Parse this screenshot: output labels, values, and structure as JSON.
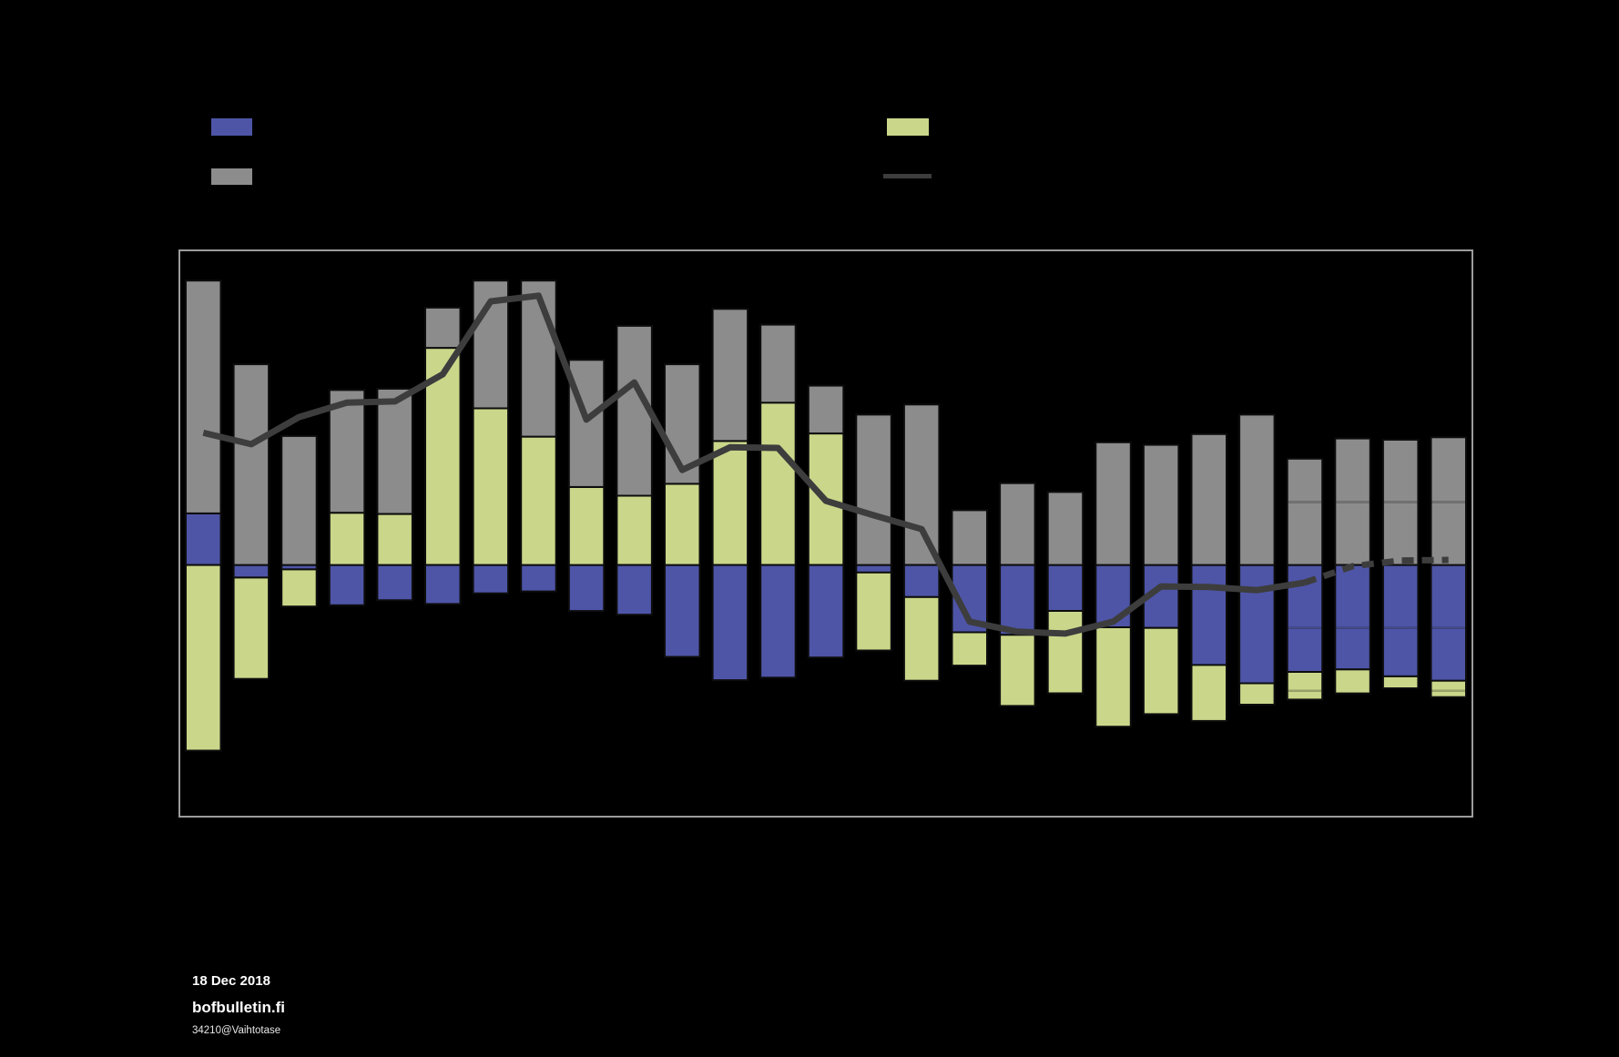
{
  "page": {
    "background": "#000000"
  },
  "legend": {
    "items": [
      {
        "id": "blue",
        "label": "",
        "color": "#4E55A7",
        "shape": "rect"
      },
      {
        "id": "yellow",
        "label": "",
        "color": "#CAD78A",
        "shape": "rect"
      },
      {
        "id": "gray",
        "label": "",
        "color": "#8C8C8C",
        "shape": "rect"
      },
      {
        "id": "line",
        "label": "",
        "color": "#3D3D3D",
        "shape": "line"
      }
    ]
  },
  "footer": {
    "date": "18 Dec 2018",
    "site": "bofbulletin.fi",
    "code": "34210@Vaihtotase"
  },
  "chart_data": {
    "type": "bar+line",
    "title": "",
    "xlabel": "",
    "ylabel": "",
    "x_tick_labels": [],
    "n_categories": 27,
    "ylim": [
      -4,
      5
    ],
    "gridline_step": 1,
    "legend_position": "top",
    "grid_visible_on_background": false,
    "forecast_from_index": 23,
    "forecast_gridlines": [
      1,
      -1,
      -2
    ],
    "stack_order": [
      "blue",
      "yellow",
      "gray"
    ],
    "series": [
      {
        "name": "blue",
        "kind": "bar",
        "color": "#4E55A7",
        "values": [
          0.82,
          -0.2,
          -0.07,
          -0.64,
          -0.56,
          -0.62,
          -0.45,
          -0.42,
          -0.73,
          -0.79,
          -1.46,
          -1.83,
          -1.79,
          -1.47,
          -0.12,
          -0.51,
          -1.07,
          -1.11,
          -0.73,
          -0.99,
          -1.0,
          -1.59,
          -1.88,
          -1.7,
          -1.66,
          -1.77,
          -1.84
        ]
      },
      {
        "name": "yellow",
        "kind": "bar",
        "color": "#CAD78A",
        "values": [
          -2.95,
          -1.61,
          -0.59,
          0.83,
          0.81,
          3.45,
          2.49,
          2.04,
          1.24,
          1.1,
          1.29,
          1.97,
          2.58,
          2.09,
          -1.24,
          -1.33,
          -0.53,
          -1.13,
          -1.31,
          -1.58,
          -1.37,
          -0.89,
          -0.34,
          -0.44,
          -0.38,
          -0.19,
          -0.26
        ]
      },
      {
        "name": "gray",
        "kind": "bar",
        "color": "#8C8C8C",
        "values": [
          3.7,
          3.19,
          2.05,
          1.95,
          1.99,
          0.64,
          2.03,
          2.48,
          2.02,
          2.7,
          1.9,
          2.1,
          1.24,
          0.76,
          2.39,
          2.55,
          0.87,
          1.3,
          1.16,
          1.95,
          1.91,
          2.08,
          2.39,
          1.69,
          2.01,
          1.99,
          2.03
        ]
      },
      {
        "name": "line",
        "kind": "line",
        "color": "#3D3D3D",
        "dash_from_index": 23,
        "values": [
          2.1,
          1.92,
          2.35,
          2.58,
          2.6,
          3.03,
          4.19,
          4.28,
          2.31,
          2.9,
          1.51,
          1.87,
          1.86,
          1.02,
          0.79,
          0.57,
          -0.9,
          -1.06,
          -1.09,
          -0.9,
          -0.34,
          -0.35,
          -0.4,
          -0.28,
          -0.02,
          0.07,
          0.08
        ]
      }
    ]
  }
}
